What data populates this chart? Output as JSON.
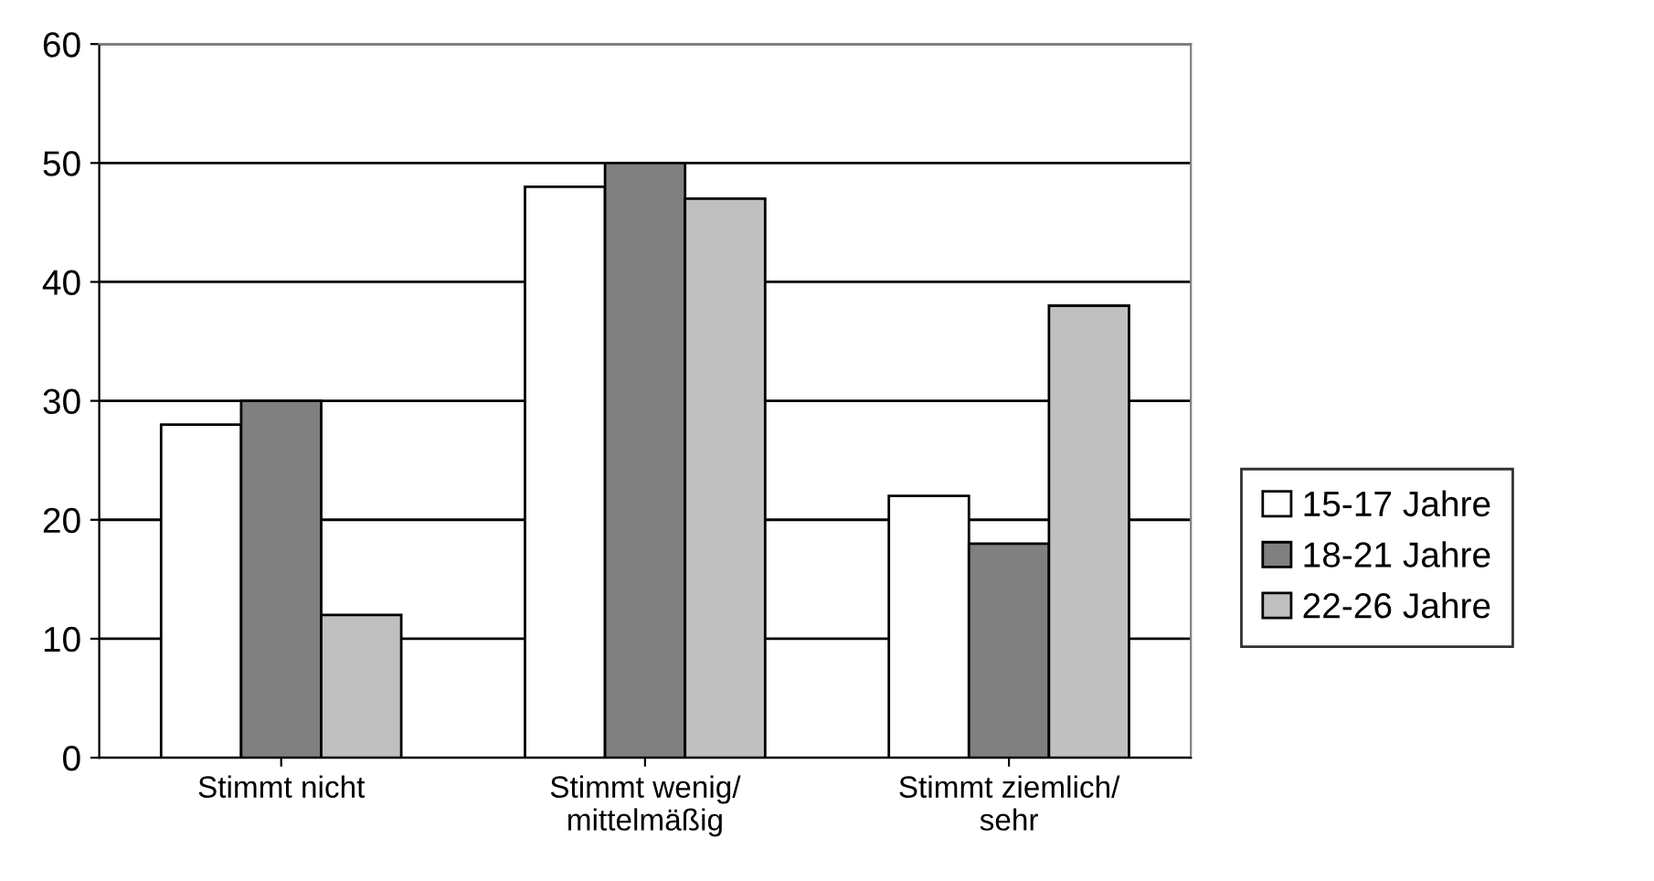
{
  "chart_data": {
    "type": "bar",
    "categories": [
      "Stimmt nicht",
      "Stimmt wenig/\nmittelmäßig",
      "Stimmt ziemlich/\nsehr"
    ],
    "series": [
      {
        "name": "15-17 Jahre",
        "color": "#ffffff",
        "values": [
          28,
          48,
          22
        ]
      },
      {
        "name": "18-21 Jahre",
        "color": "#808080",
        "values": [
          30,
          50,
          18
        ]
      },
      {
        "name": "22-26 Jahre",
        "color": "#c0c0c0",
        "values": [
          12,
          47,
          38
        ]
      }
    ],
    "ylim": [
      0,
      60
    ],
    "yticks": [
      0,
      10,
      20,
      30,
      40,
      50,
      60
    ],
    "grid": "y",
    "legend": "right"
  }
}
